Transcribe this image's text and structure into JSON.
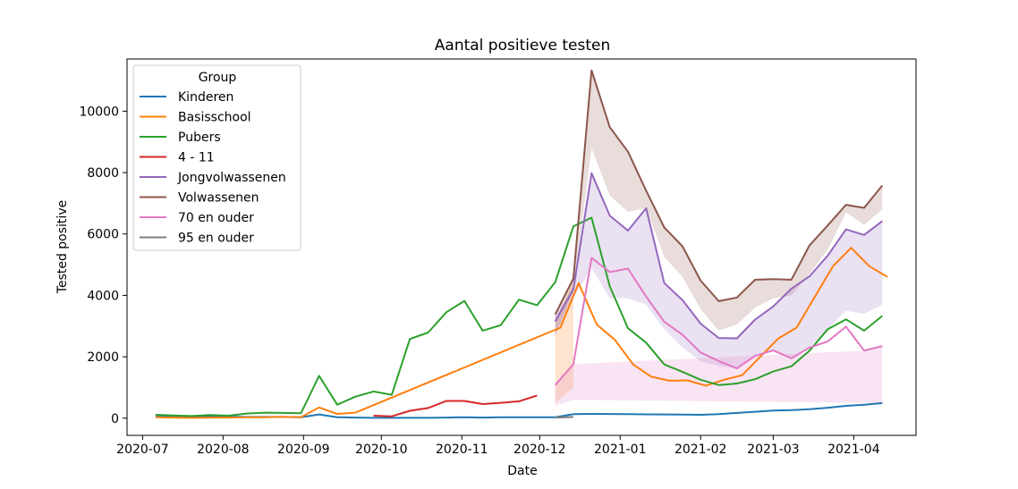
{
  "chart_data": {
    "type": "line",
    "title": "Aantal positieve testen",
    "xlabel": "Date",
    "ylabel": "Tested positive",
    "xlim": [
      "2020-06-25",
      "2021-04-25"
    ],
    "ylim": [
      -560,
      11700
    ],
    "x_ticks": [
      "2020-07-01",
      "2020-08-01",
      "2020-09-01",
      "2020-10-01",
      "2020-11-01",
      "2020-12-01",
      "2021-01-01",
      "2021-02-01",
      "2021-03-01",
      "2021-04-01"
    ],
    "x_tick_labels": [
      "2020-07",
      "2020-08",
      "2020-09",
      "2020-10",
      "2020-11",
      "2020-12",
      "2021-01",
      "2021-02",
      "2021-03",
      "2021-04"
    ],
    "y_ticks": [
      0,
      2000,
      4000,
      6000,
      8000,
      10000
    ],
    "y_tick_labels": [
      "0",
      "2000",
      "4000",
      "6000",
      "8000",
      "10000"
    ],
    "grid": false,
    "legend": {
      "title": "Group",
      "placement": "top-left"
    },
    "series": [
      {
        "name": "Kinderen",
        "color": "#1f77b4",
        "points": [
          [
            "2020-07-06",
            90
          ],
          [
            "2020-07-13",
            70
          ],
          [
            "2020-07-20",
            60
          ],
          [
            "2020-07-27",
            70
          ],
          [
            "2020-08-03",
            50
          ],
          [
            "2020-08-10",
            40
          ],
          [
            "2020-08-17",
            40
          ],
          [
            "2020-08-24",
            40
          ],
          [
            "2020-08-31",
            30
          ],
          [
            "2020-09-07",
            120
          ],
          [
            "2020-09-14",
            30
          ],
          [
            "2020-09-21",
            20
          ],
          [
            "2020-09-28",
            10
          ],
          [
            "2020-10-05",
            10
          ],
          [
            "2020-10-12",
            10
          ],
          [
            "2020-10-19",
            10
          ],
          [
            "2020-10-26",
            20
          ],
          [
            "2020-11-02",
            30
          ],
          [
            "2020-11-09",
            20
          ],
          [
            "2020-11-16",
            30
          ],
          [
            "2020-11-23",
            30
          ],
          [
            "2020-11-30",
            30
          ],
          [
            "2020-12-07",
            30
          ],
          [
            "2020-12-14",
            130
          ],
          [
            "2020-12-21",
            140
          ],
          [
            "2020-12-28",
            135
          ],
          [
            "2021-01-04",
            130
          ],
          [
            "2021-01-11",
            125
          ],
          [
            "2021-01-18",
            120
          ],
          [
            "2021-01-25",
            115
          ],
          [
            "2021-02-01",
            110
          ],
          [
            "2021-02-08",
            130
          ],
          [
            "2021-02-15",
            170
          ],
          [
            "2021-02-22",
            210
          ],
          [
            "2021-03-01",
            250
          ],
          [
            "2021-03-08",
            260
          ],
          [
            "2021-03-15",
            290
          ],
          [
            "2021-03-22",
            340
          ],
          [
            "2021-03-29",
            400
          ],
          [
            "2021-04-05",
            440
          ],
          [
            "2021-04-12",
            490
          ]
        ]
      },
      {
        "name": "Basisschool",
        "color": "#ff7f0e",
        "points": [
          [
            "2020-07-06",
            30
          ],
          [
            "2020-07-13",
            20
          ],
          [
            "2020-07-20",
            10
          ],
          [
            "2020-07-27",
            20
          ],
          [
            "2020-08-03",
            20
          ],
          [
            "2020-08-10",
            30
          ],
          [
            "2020-08-17",
            30
          ],
          [
            "2020-08-24",
            40
          ],
          [
            "2020-08-31",
            30
          ],
          [
            "2020-09-07",
            350
          ],
          [
            "2020-09-14",
            140
          ],
          [
            "2020-09-21",
            180
          ],
          [
            "2020-12-09",
            2950
          ],
          [
            "2020-12-16",
            4400
          ],
          [
            "2020-12-23",
            3050
          ],
          [
            "2020-12-30",
            2550
          ],
          [
            "2021-01-06",
            1750
          ],
          [
            "2021-01-13",
            1350
          ],
          [
            "2021-01-20",
            1220
          ],
          [
            "2021-01-27",
            1230
          ],
          [
            "2021-02-03",
            1060
          ],
          [
            "2021-02-10",
            1250
          ],
          [
            "2021-02-17",
            1400
          ],
          [
            "2021-02-24",
            2000
          ],
          [
            "2021-03-03",
            2600
          ],
          [
            "2021-03-10",
            2950
          ],
          [
            "2021-03-17",
            3950
          ],
          [
            "2021-03-24",
            4950
          ],
          [
            "2021-03-31",
            5550
          ],
          [
            "2021-04-07",
            4950
          ],
          [
            "2021-04-14",
            4600
          ]
        ]
      },
      {
        "name": "Pubers",
        "color": "#2ca02c",
        "points": [
          [
            "2020-07-06",
            110
          ],
          [
            "2020-07-13",
            90
          ],
          [
            "2020-07-20",
            70
          ],
          [
            "2020-07-27",
            100
          ],
          [
            "2020-08-03",
            80
          ],
          [
            "2020-08-10",
            150
          ],
          [
            "2020-08-17",
            180
          ],
          [
            "2020-08-24",
            170
          ],
          [
            "2020-08-31",
            160
          ],
          [
            "2020-09-07",
            1380
          ],
          [
            "2020-09-14",
            440
          ],
          [
            "2020-09-21",
            700
          ],
          [
            "2020-09-28",
            870
          ],
          [
            "2020-10-05",
            760
          ],
          [
            "2020-10-12",
            2580
          ],
          [
            "2020-10-19",
            2790
          ],
          [
            "2020-10-26",
            3450
          ],
          [
            "2020-11-02",
            3820
          ],
          [
            "2020-11-09",
            2850
          ],
          [
            "2020-11-16",
            3030
          ],
          [
            "2020-11-23",
            3860
          ],
          [
            "2020-11-30",
            3680
          ],
          [
            "2020-12-07",
            4430
          ],
          [
            "2020-12-14",
            6250
          ],
          [
            "2020-12-21",
            6530
          ],
          [
            "2020-12-28",
            4300
          ],
          [
            "2021-01-04",
            2930
          ],
          [
            "2021-01-11",
            2460
          ],
          [
            "2021-01-18",
            1750
          ],
          [
            "2021-01-25",
            1510
          ],
          [
            "2021-02-01",
            1250
          ],
          [
            "2021-02-08",
            1080
          ],
          [
            "2021-02-15",
            1130
          ],
          [
            "2021-02-22",
            1270
          ],
          [
            "2021-03-01",
            1520
          ],
          [
            "2021-03-08",
            1690
          ],
          [
            "2021-03-15",
            2200
          ],
          [
            "2021-03-22",
            2900
          ],
          [
            "2021-03-29",
            3220
          ],
          [
            "2021-04-05",
            2850
          ],
          [
            "2021-04-12",
            3330
          ]
        ]
      },
      {
        "name": "4 - 11",
        "color": "#d62728",
        "points": [
          [
            "2020-09-28",
            80
          ],
          [
            "2020-10-05",
            60
          ],
          [
            "2020-10-12",
            240
          ],
          [
            "2020-10-19",
            330
          ],
          [
            "2020-10-26",
            560
          ],
          [
            "2020-11-02",
            560
          ],
          [
            "2020-11-09",
            460
          ],
          [
            "2020-11-16",
            500
          ],
          [
            "2020-11-23",
            550
          ],
          [
            "2020-11-30",
            740
          ]
        ]
      },
      {
        "name": "Jongvolwassenen",
        "color": "#9467bd",
        "points": [
          [
            "2020-12-07",
            3150
          ],
          [
            "2020-12-14",
            4200
          ],
          [
            "2020-12-21",
            7980
          ],
          [
            "2020-12-28",
            6600
          ],
          [
            "2021-01-04",
            6110
          ],
          [
            "2021-01-11",
            6840
          ],
          [
            "2021-01-18",
            4400
          ],
          [
            "2021-01-25",
            3850
          ],
          [
            "2021-02-01",
            3080
          ],
          [
            "2021-02-08",
            2610
          ],
          [
            "2021-02-15",
            2600
          ],
          [
            "2021-02-22",
            3210
          ],
          [
            "2021-03-01",
            3640
          ],
          [
            "2021-03-08",
            4220
          ],
          [
            "2021-03-15",
            4620
          ],
          [
            "2021-03-22",
            5300
          ],
          [
            "2021-03-29",
            6150
          ],
          [
            "2021-04-05",
            5970
          ],
          [
            "2021-04-12",
            6420
          ]
        ]
      },
      {
        "name": "Volwassenen",
        "color": "#8c564b",
        "points": [
          [
            "2020-12-07",
            3380
          ],
          [
            "2020-12-14",
            4550
          ],
          [
            "2020-12-21",
            11330
          ],
          [
            "2020-12-28",
            9480
          ],
          [
            "2021-01-04",
            8680
          ],
          [
            "2021-01-11",
            7410
          ],
          [
            "2021-01-18",
            6210
          ],
          [
            "2021-01-25",
            5600
          ],
          [
            "2021-02-01",
            4480
          ],
          [
            "2021-02-08",
            3810
          ],
          [
            "2021-02-15",
            3930
          ],
          [
            "2021-02-22",
            4510
          ],
          [
            "2021-03-01",
            4530
          ],
          [
            "2021-03-08",
            4510
          ],
          [
            "2021-03-15",
            5630
          ],
          [
            "2021-03-22",
            6280
          ],
          [
            "2021-03-29",
            6950
          ],
          [
            "2021-04-05",
            6850
          ],
          [
            "2021-04-12",
            7580
          ]
        ]
      },
      {
        "name": "70 en ouder",
        "color": "#e377c2",
        "points": [
          [
            "2020-12-07",
            1080
          ],
          [
            "2020-12-14",
            1760
          ],
          [
            "2020-12-21",
            5220
          ],
          [
            "2020-12-28",
            4760
          ],
          [
            "2021-01-04",
            4870
          ],
          [
            "2021-01-11",
            3960
          ],
          [
            "2021-01-18",
            3140
          ],
          [
            "2021-01-25",
            2720
          ],
          [
            "2021-02-01",
            2140
          ],
          [
            "2021-02-08",
            1860
          ],
          [
            "2021-02-15",
            1620
          ],
          [
            "2021-02-22",
            2030
          ],
          [
            "2021-03-01",
            2210
          ],
          [
            "2021-03-08",
            1950
          ],
          [
            "2021-03-15",
            2300
          ],
          [
            "2021-03-22",
            2500
          ],
          [
            "2021-03-29",
            2980
          ],
          [
            "2021-04-05",
            2200
          ],
          [
            "2021-04-12",
            2350
          ]
        ]
      },
      {
        "name": "95 en ouder",
        "color": "#7f7f7f",
        "points": [
          [
            "2020-12-07",
            20
          ],
          [
            "2020-12-14",
            40
          ]
        ]
      }
    ],
    "bands": [
      {
        "color": "#ff7f0e",
        "points": [
          [
            "2020-12-07",
            500,
            3100
          ],
          [
            "2020-12-14",
            1000,
            4500
          ]
        ]
      },
      {
        "color": "#8c564b",
        "points": [
          [
            "2020-12-07",
            2700,
            3400
          ],
          [
            "2020-12-14",
            4150,
            4600
          ],
          [
            "2020-12-21",
            8800,
            11330
          ],
          [
            "2020-12-28",
            7250,
            9480
          ],
          [
            "2021-01-04",
            6720,
            8680
          ],
          [
            "2021-01-11",
            6850,
            7410
          ],
          [
            "2021-01-18",
            5250,
            6210
          ],
          [
            "2021-01-25",
            4600,
            5600
          ],
          [
            "2021-02-01",
            3550,
            4480
          ],
          [
            "2021-02-08",
            2850,
            3810
          ],
          [
            "2021-02-15",
            3050,
            3930
          ],
          [
            "2021-02-22",
            3600,
            4510
          ],
          [
            "2021-03-01",
            3900,
            4530
          ],
          [
            "2021-03-08",
            4000,
            4510
          ],
          [
            "2021-03-15",
            4700,
            5630
          ],
          [
            "2021-03-22",
            5500,
            6280
          ],
          [
            "2021-03-29",
            6700,
            6950
          ],
          [
            "2021-04-05",
            6300,
            6850
          ],
          [
            "2021-04-12",
            6800,
            7580
          ]
        ]
      },
      {
        "color": "#9467bd",
        "points": [
          [
            "2020-12-07",
            2700,
            3300
          ],
          [
            "2020-12-14",
            3900,
            4300
          ],
          [
            "2020-12-21",
            4900,
            7980
          ],
          [
            "2020-12-28",
            3900,
            6600
          ],
          [
            "2021-01-04",
            3900,
            6110
          ],
          [
            "2021-01-11",
            3700,
            6840
          ],
          [
            "2021-01-18",
            2900,
            4400
          ],
          [
            "2021-01-25",
            2300,
            3850
          ],
          [
            "2021-02-01",
            1850,
            3080
          ],
          [
            "2021-02-08",
            1700,
            2610
          ],
          [
            "2021-02-15",
            1620,
            2600
          ],
          [
            "2021-02-22",
            2050,
            3210
          ],
          [
            "2021-03-01",
            2200,
            3640
          ],
          [
            "2021-03-08",
            1950,
            4220
          ],
          [
            "2021-03-15",
            2300,
            4620
          ],
          [
            "2021-03-22",
            2900,
            5300
          ],
          [
            "2021-03-29",
            3500,
            6150
          ],
          [
            "2021-04-05",
            3400,
            5970
          ],
          [
            "2021-04-12",
            3700,
            6420
          ]
        ]
      },
      {
        "color": "#e377c2",
        "points": [
          [
            "2020-12-07",
            400,
            1080
          ],
          [
            "2020-12-14",
            600,
            1760
          ],
          [
            "2021-04-05",
            500,
            2200
          ],
          [
            "2021-04-12",
            500,
            2350
          ]
        ]
      }
    ]
  }
}
